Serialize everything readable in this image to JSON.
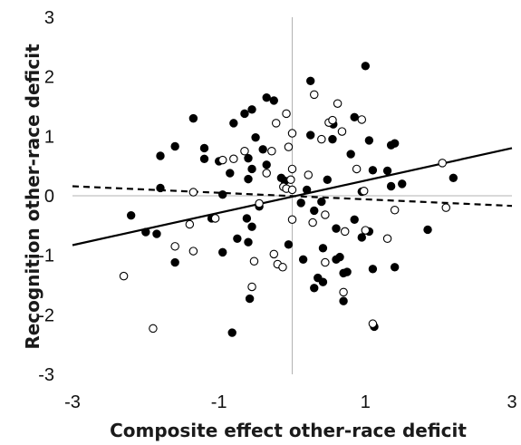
{
  "chart_data": {
    "type": "scatter",
    "title": "",
    "xlabel": "Composite effect other-race deficit",
    "ylabel": "Recognition other-race deficit",
    "xlim": [
      -3,
      3
    ],
    "ylim": [
      -3,
      3
    ],
    "xticks": [
      "-3",
      "-1",
      "1",
      "3"
    ],
    "yticks": [
      "3",
      "2",
      "1",
      "0",
      "-1",
      "-2",
      "-3"
    ],
    "xtick_values": [
      -3,
      -1,
      1,
      3
    ],
    "ytick_values": [
      3,
      2,
      1,
      0,
      -1,
      -2,
      -3
    ],
    "zero_lines": true,
    "grid": false,
    "legend": "none",
    "colors": {
      "marker": "#000000",
      "axis_line": "#b3b3b3"
    },
    "series": [
      {
        "marker": "filled",
        "points": [
          [
            1.0,
            2.18
          ],
          [
            0.25,
            1.93
          ],
          [
            -0.35,
            1.65
          ],
          [
            -0.25,
            1.6
          ],
          [
            -0.55,
            1.45
          ],
          [
            -0.65,
            1.38
          ],
          [
            -1.35,
            1.3
          ],
          [
            -0.8,
            1.22
          ],
          [
            0.56,
            1.2
          ],
          [
            -1.6,
            0.83
          ],
          [
            -1.8,
            0.67
          ],
          [
            -1.2,
            0.8
          ],
          [
            -1.2,
            0.62
          ],
          [
            -1.0,
            0.58
          ],
          [
            -0.6,
            0.63
          ],
          [
            -0.4,
            0.78
          ],
          [
            0.85,
            1.32
          ],
          [
            1.05,
            0.93
          ],
          [
            1.4,
            0.88
          ],
          [
            1.35,
            0.85
          ],
          [
            0.8,
            0.7
          ],
          [
            0.25,
            1.02
          ],
          [
            0.55,
            0.95
          ],
          [
            -0.5,
            0.98
          ],
          [
            -0.35,
            0.52
          ],
          [
            -0.55,
            0.45
          ],
          [
            -0.85,
            0.38
          ],
          [
            -0.6,
            0.28
          ],
          [
            -0.15,
            0.3
          ],
          [
            -0.1,
            0.25
          ],
          [
            1.1,
            0.43
          ],
          [
            1.3,
            0.42
          ],
          [
            1.35,
            0.16
          ],
          [
            1.5,
            0.2
          ],
          [
            0.48,
            0.27
          ],
          [
            0.2,
            0.1
          ],
          [
            2.2,
            0.3
          ],
          [
            -0.95,
            0.02
          ],
          [
            -1.8,
            0.13
          ],
          [
            0.95,
            0.07
          ],
          [
            0.4,
            -0.1
          ],
          [
            -0.45,
            -0.18
          ],
          [
            -0.62,
            -0.38
          ],
          [
            -0.55,
            -0.52
          ],
          [
            0.3,
            -0.25
          ],
          [
            0.12,
            -0.12
          ],
          [
            0.85,
            -0.4
          ],
          [
            1.05,
            -0.6
          ],
          [
            0.95,
            -0.7
          ],
          [
            0.6,
            -0.55
          ],
          [
            -1.1,
            -0.38
          ],
          [
            -2.2,
            -0.33
          ],
          [
            -2.0,
            -0.61
          ],
          [
            -1.85,
            -0.64
          ],
          [
            -0.75,
            -0.72
          ],
          [
            -0.6,
            -0.78
          ],
          [
            -0.05,
            -0.82
          ],
          [
            -0.95,
            -0.95
          ],
          [
            -1.6,
            -1.12
          ],
          [
            0.15,
            -1.07
          ],
          [
            0.42,
            -0.88
          ],
          [
            0.65,
            -1.03
          ],
          [
            0.6,
            -1.07
          ],
          [
            0.75,
            -1.28
          ],
          [
            0.7,
            -1.3
          ],
          [
            1.1,
            -1.23
          ],
          [
            1.4,
            -1.2
          ],
          [
            1.85,
            -0.57
          ],
          [
            0.35,
            -1.38
          ],
          [
            0.42,
            -1.45
          ],
          [
            0.3,
            -1.55
          ],
          [
            0.7,
            -1.77
          ],
          [
            -0.58,
            -1.73
          ],
          [
            -0.82,
            -2.3
          ],
          [
            1.12,
            -2.2
          ]
        ]
      },
      {
        "marker": "open",
        "points": [
          [
            0.3,
            1.7
          ],
          [
            0.62,
            1.55
          ],
          [
            0.5,
            1.23
          ],
          [
            0.55,
            1.27
          ],
          [
            0.95,
            1.28
          ],
          [
            -0.08,
            1.38
          ],
          [
            0.0,
            1.05
          ],
          [
            -0.22,
            1.22
          ],
          [
            0.4,
            0.95
          ],
          [
            0.68,
            1.08
          ],
          [
            -0.28,
            0.75
          ],
          [
            -0.05,
            0.82
          ],
          [
            -0.65,
            0.75
          ],
          [
            -0.8,
            0.62
          ],
          [
            -0.95,
            0.6
          ],
          [
            0.88,
            0.45
          ],
          [
            0.22,
            0.35
          ],
          [
            0.0,
            0.45
          ],
          [
            -0.35,
            0.38
          ],
          [
            -0.02,
            0.27
          ],
          [
            -0.12,
            0.15
          ],
          [
            -0.08,
            0.12
          ],
          [
            0.0,
            0.1
          ],
          [
            0.98,
            0.08
          ],
          [
            2.05,
            0.55
          ],
          [
            -1.35,
            0.06
          ],
          [
            -1.05,
            -0.38
          ],
          [
            -1.4,
            -0.48
          ],
          [
            -0.45,
            -0.13
          ],
          [
            0.0,
            -0.4
          ],
          [
            1.4,
            -0.24
          ],
          [
            2.1,
            -0.2
          ],
          [
            0.45,
            -0.32
          ],
          [
            0.28,
            -0.45
          ],
          [
            0.72,
            -0.6
          ],
          [
            1.0,
            -0.58
          ],
          [
            1.3,
            -0.72
          ],
          [
            -1.6,
            -0.85
          ],
          [
            -1.35,
            -0.93
          ],
          [
            -0.25,
            -0.98
          ],
          [
            -0.52,
            -1.1
          ],
          [
            -0.2,
            -1.15
          ],
          [
            -0.13,
            -1.2
          ],
          [
            0.45,
            -1.12
          ],
          [
            -0.55,
            -1.53
          ],
          [
            0.7,
            -1.62
          ],
          [
            1.1,
            -2.15
          ],
          [
            -2.3,
            -1.35
          ],
          [
            -1.9,
            -2.23
          ]
        ]
      }
    ],
    "trendlines": [
      {
        "style": "solid",
        "x": [
          -3,
          3
        ],
        "y": [
          -0.83,
          0.8
        ]
      },
      {
        "style": "dashed",
        "x": [
          -3,
          3
        ],
        "y": [
          0.16,
          -0.17
        ]
      }
    ]
  }
}
